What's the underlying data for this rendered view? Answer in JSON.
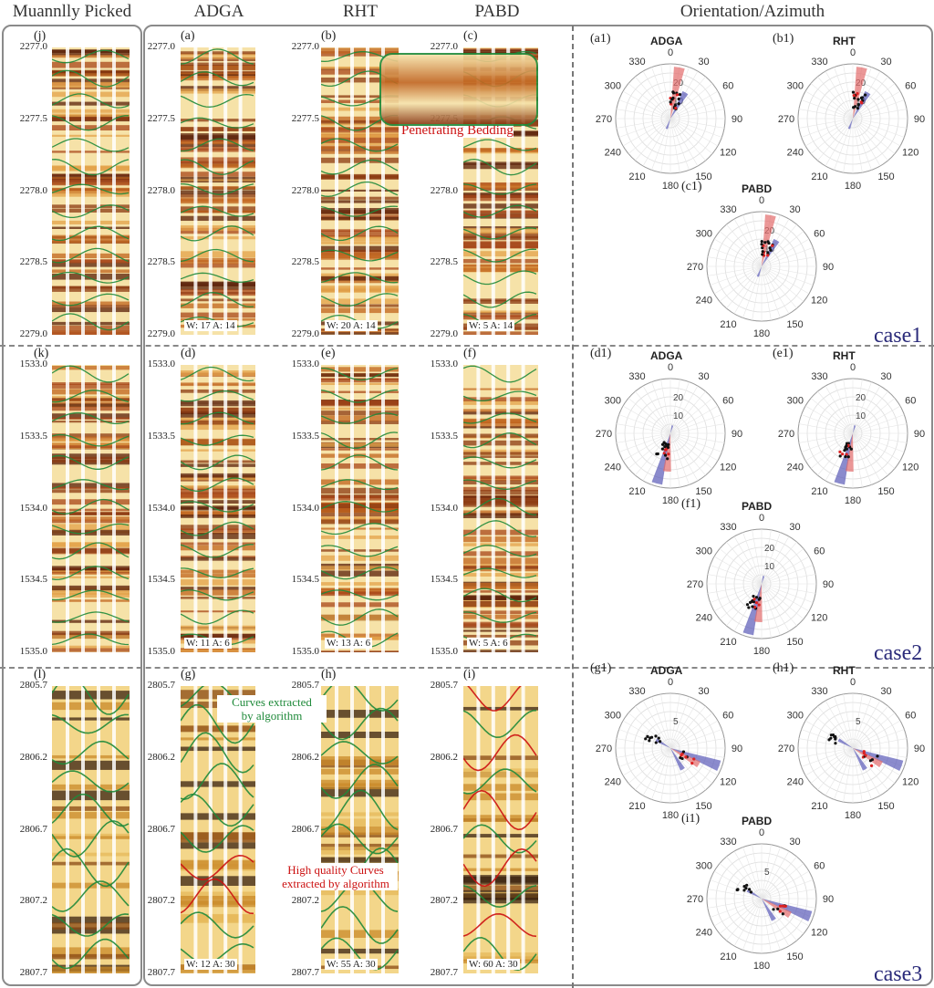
{
  "headers": [
    "Muannlly Picked",
    "ADGA",
    "RHT",
    "PABD",
    "Orientation/Azimuth"
  ],
  "colors": {
    "green": "#1f8a3a",
    "red": "#cc1111",
    "rose_red": "#e36b6b",
    "rose_blue": "#5a5ab8",
    "case_text": "#2b2b7a"
  },
  "rows": [
    {
      "case": "case1",
      "depth_ticks": [
        "2277.0",
        "2277.5",
        "2278.0",
        "2278.5",
        "2279.0"
      ],
      "panels": [
        {
          "label": "(j)",
          "method": "manual",
          "wa": ""
        },
        {
          "label": "(a)",
          "method": "ADGA",
          "wa": "W: 17  A: 14"
        },
        {
          "label": "(b)",
          "method": "RHT",
          "wa": "W: 20  A: 14"
        },
        {
          "label": "(c)",
          "method": "PABD",
          "wa": "W: 5  A: 14"
        }
      ],
      "roses": [
        {
          "label": "(a1)",
          "title": "ADGA",
          "radial_ticks": [
            "10",
            "20"
          ]
        },
        {
          "label": "(b1)",
          "title": "RHT",
          "radial_ticks": [
            "10",
            "20"
          ]
        },
        {
          "label": "(c1)",
          "title": "PABD",
          "radial_ticks": [
            "10",
            "20"
          ]
        }
      ]
    },
    {
      "case": "case2",
      "depth_ticks": [
        "1533.0",
        "1533.5",
        "1534.0",
        "1534.5",
        "1535.0"
      ],
      "panels": [
        {
          "label": "(k)",
          "method": "manual",
          "wa": ""
        },
        {
          "label": "(d)",
          "method": "ADGA",
          "wa": "W: 11  A: 6"
        },
        {
          "label": "(e)",
          "method": "RHT",
          "wa": "W: 13  A: 6"
        },
        {
          "label": "(f)",
          "method": "PABD",
          "wa": "W: 5  A: 6"
        }
      ],
      "roses": [
        {
          "label": "(d1)",
          "title": "ADGA",
          "radial_ticks": [
            "10",
            "20"
          ]
        },
        {
          "label": "(e1)",
          "title": "RHT",
          "radial_ticks": [
            "10",
            "20"
          ]
        },
        {
          "label": "(f1)",
          "title": "PABD",
          "radial_ticks": [
            "10",
            "20"
          ]
        }
      ]
    },
    {
      "case": "case3",
      "depth_ticks": [
        "2805.7",
        "2806.2",
        "2806.7",
        "2807.2",
        "2807.7"
      ],
      "panels": [
        {
          "label": "(l)",
          "method": "manual",
          "wa": ""
        },
        {
          "label": "(g)",
          "method": "ADGA",
          "wa": "W: 12  A: 30"
        },
        {
          "label": "(h)",
          "method": "RHT",
          "wa": "W: 55  A: 30"
        },
        {
          "label": "(i)",
          "method": "PABD",
          "wa": "W: 60  A: 30"
        }
      ],
      "roses": [
        {
          "label": "(g1)",
          "title": "ADGA",
          "radial_ticks": [
            "5"
          ]
        },
        {
          "label": "(h1)",
          "title": "RHT",
          "radial_ticks": [
            "5"
          ]
        },
        {
          "label": "(i1)",
          "title": "PABD",
          "radial_ticks": [
            "5"
          ]
        }
      ]
    }
  ],
  "angle_labels": [
    "0",
    "30",
    "60",
    "90",
    "120",
    "150",
    "180",
    "210",
    "240",
    "270",
    "300",
    "330"
  ],
  "annotations": {
    "penetrating": "Penetrating Bedding",
    "green_note": "Curves extracted\nby algorithm",
    "red_note": "High quality Curves\nextracted by algorithm"
  }
}
